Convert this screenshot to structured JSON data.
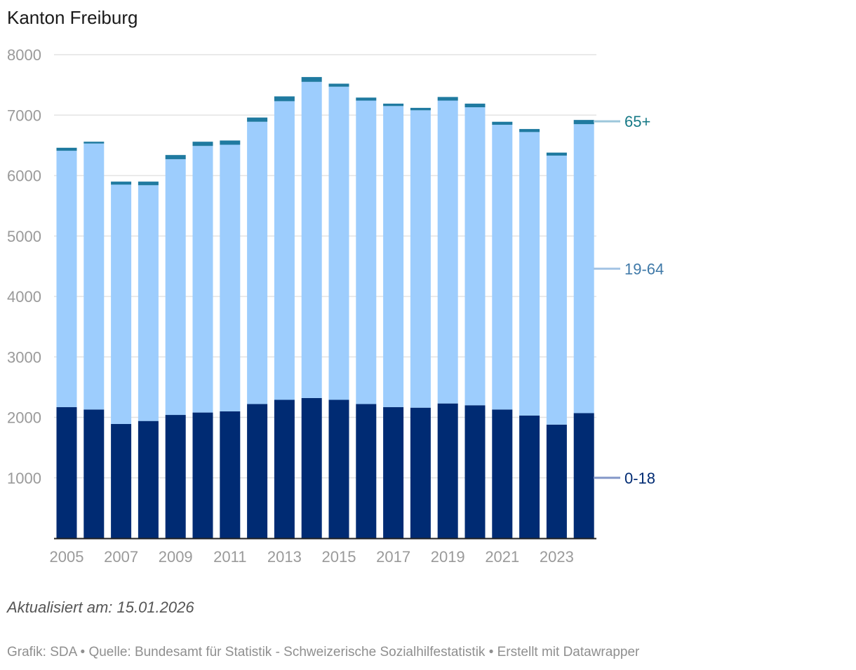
{
  "header": {
    "title": "Kanton Freiburg"
  },
  "chart_data": {
    "type": "bar",
    "stacked": true,
    "title": "Kanton Freiburg",
    "categories": [
      "2005",
      "2006",
      "2007",
      "2008",
      "2009",
      "2010",
      "2011",
      "2012",
      "2013",
      "2014",
      "2015",
      "2016",
      "2017",
      "2018",
      "2019",
      "2020",
      "2021",
      "2022",
      "2023",
      "2024"
    ],
    "x_tick_labels": [
      "2005",
      "2007",
      "2009",
      "2011",
      "2013",
      "2015",
      "2017",
      "2019",
      "2021",
      "2023"
    ],
    "y_ticks": [
      "1000",
      "2000",
      "3000",
      "4000",
      "5000",
      "6000",
      "7000",
      "8000"
    ],
    "ylim": [
      0,
      8000
    ],
    "grid": true,
    "series": [
      {
        "name": "0-18",
        "color": "#002b73",
        "label_color": "#002b73",
        "connector_color": "#8397c8",
        "values": [
          2170,
          2130,
          1890,
          1940,
          2040,
          2080,
          2100,
          2220,
          2290,
          2320,
          2290,
          2220,
          2170,
          2160,
          2230,
          2200,
          2130,
          2030,
          1880,
          2070
        ]
      },
      {
        "name": "19-64",
        "color": "#9dcdfd",
        "label_color": "#3f79a8",
        "connector_color": "#a5c5e5",
        "values": [
          4240,
          4400,
          3960,
          3900,
          4230,
          4410,
          4410,
          4670,
          4940,
          5230,
          5180,
          5020,
          4980,
          4920,
          5010,
          4930,
          4710,
          4690,
          4450,
          4780
        ]
      },
      {
        "name": "65+",
        "color": "#1f7aa0",
        "label_color": "#167986",
        "connector_color": "#9cc7db",
        "values": [
          50,
          30,
          50,
          60,
          70,
          70,
          70,
          70,
          80,
          80,
          50,
          50,
          40,
          40,
          60,
          60,
          50,
          50,
          50,
          70
        ]
      }
    ]
  },
  "footer": {
    "updated": "Aktualisiert am: 15.01.2026",
    "source": "Grafik: SDA • Quelle: Bundesamt für Statistik - Schweizerische Sozialhilfestatistik • Erstellt mit Datawrapper"
  }
}
